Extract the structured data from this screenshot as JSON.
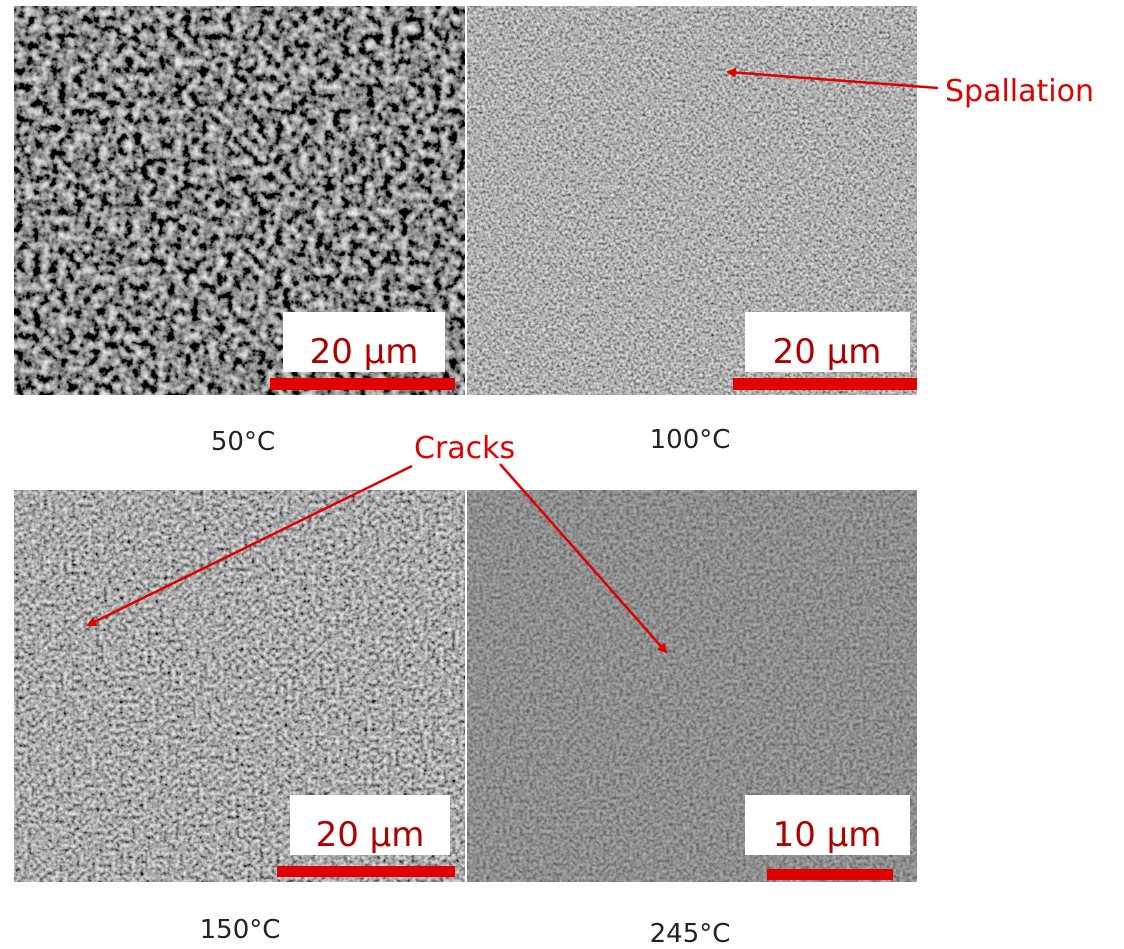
{
  "panels": [
    {
      "label": "50°C",
      "scale": "20 µm"
    },
    {
      "label": "100°C",
      "scale": "20 µm"
    },
    {
      "label": "150°C",
      "scale": "20 µm"
    },
    {
      "label": "245°C",
      "scale": "10 µm"
    }
  ],
  "annotations": {
    "spallation": "Spallation",
    "cracks": "Cracks"
  }
}
